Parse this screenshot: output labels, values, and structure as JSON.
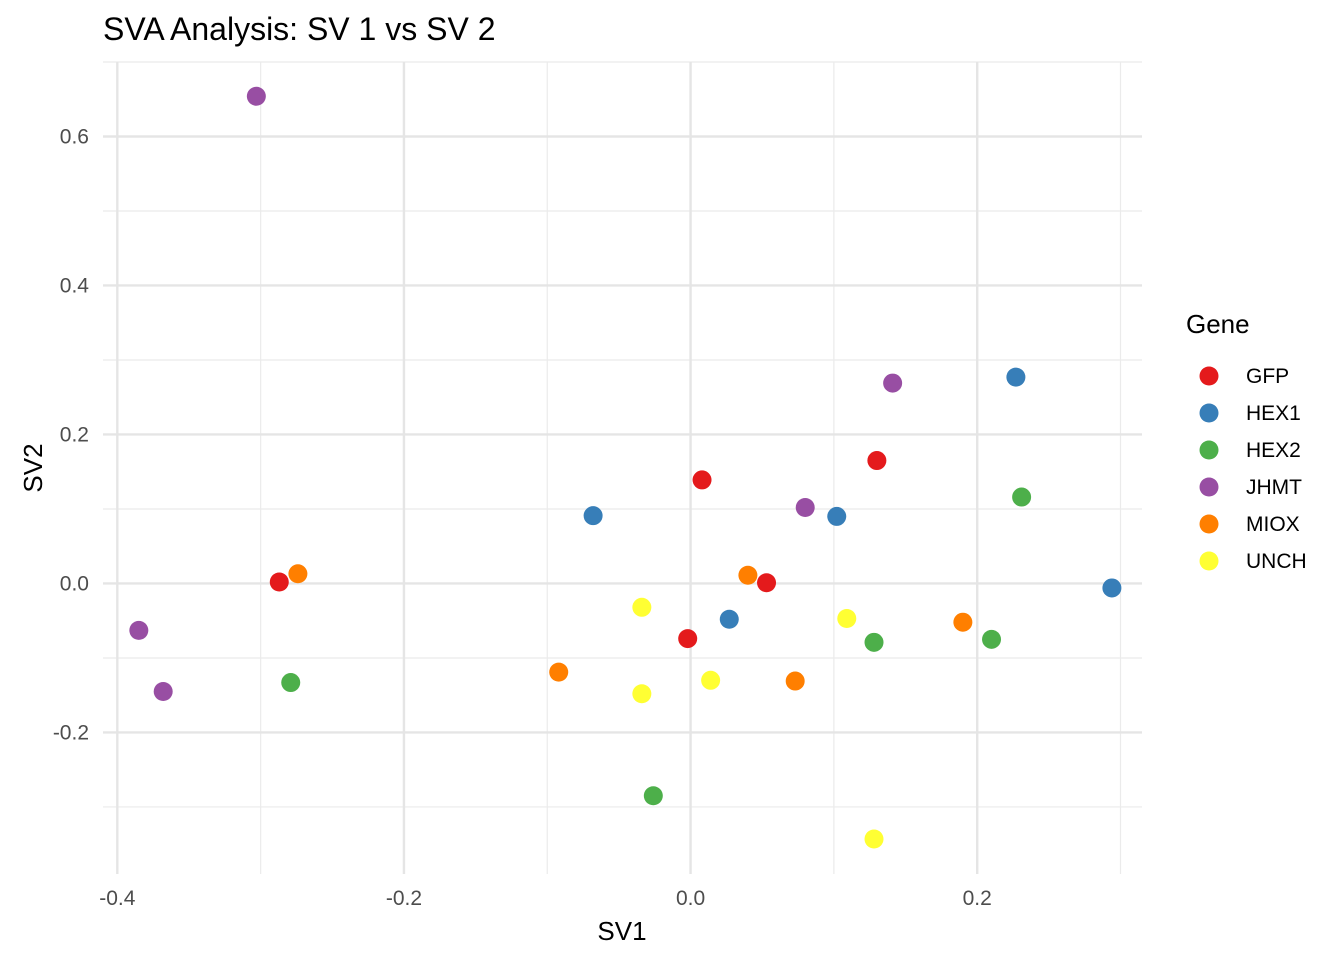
{
  "chart_data": {
    "type": "scatter",
    "title": "SVA Analysis: SV 1  vs SV 2",
    "xlabel": "SV1",
    "ylabel": "SV2",
    "xlim": [
      -0.41,
      0.315
    ],
    "ylim": [
      -0.39,
      0.7
    ],
    "x_ticks": [
      -0.4,
      -0.2,
      0.0,
      0.2
    ],
    "x_tick_labels": [
      "-0.4",
      "-0.2",
      "0.0",
      "0.2"
    ],
    "y_ticks": [
      -0.2,
      0.0,
      0.2,
      0.4,
      0.6
    ],
    "y_tick_labels": [
      "-0.2",
      "0.0",
      "0.2",
      "0.4",
      "0.6"
    ],
    "grid": true,
    "legend": {
      "title": "Gene",
      "position": "right"
    },
    "series": [
      {
        "name": "GFP",
        "color": "#E41A1C",
        "points": [
          [
            -0.287,
            0.002
          ],
          [
            0.008,
            0.139
          ],
          [
            -0.002,
            -0.074
          ],
          [
            0.053,
            0.001
          ],
          [
            0.13,
            0.165
          ]
        ]
      },
      {
        "name": "HEX1",
        "color": "#377EB8",
        "points": [
          [
            -0.068,
            0.091
          ],
          [
            0.027,
            -0.048
          ],
          [
            0.102,
            0.09
          ],
          [
            0.227,
            0.277
          ],
          [
            0.294,
            -0.006
          ]
        ]
      },
      {
        "name": "HEX2",
        "color": "#4DAF4A",
        "points": [
          [
            -0.279,
            -0.133
          ],
          [
            -0.026,
            -0.285
          ],
          [
            0.128,
            -0.079
          ],
          [
            0.21,
            -0.075
          ],
          [
            0.231,
            0.116
          ]
        ]
      },
      {
        "name": "JHMT",
        "color": "#984EA3",
        "points": [
          [
            -0.303,
            0.654
          ],
          [
            -0.385,
            -0.063
          ],
          [
            -0.368,
            -0.145
          ],
          [
            0.08,
            0.102
          ],
          [
            0.141,
            0.269
          ]
        ]
      },
      {
        "name": "MIOX",
        "color": "#FF7F00",
        "points": [
          [
            -0.274,
            0.013
          ],
          [
            -0.092,
            -0.119
          ],
          [
            0.04,
            0.011
          ],
          [
            0.073,
            -0.131
          ],
          [
            0.19,
            -0.052
          ]
        ]
      },
      {
        "name": "UNCH",
        "color": "#FFFF33",
        "points": [
          [
            -0.034,
            -0.032
          ],
          [
            -0.034,
            -0.148
          ],
          [
            0.014,
            -0.13
          ],
          [
            0.109,
            -0.047
          ],
          [
            0.128,
            -0.343
          ]
        ]
      }
    ]
  }
}
